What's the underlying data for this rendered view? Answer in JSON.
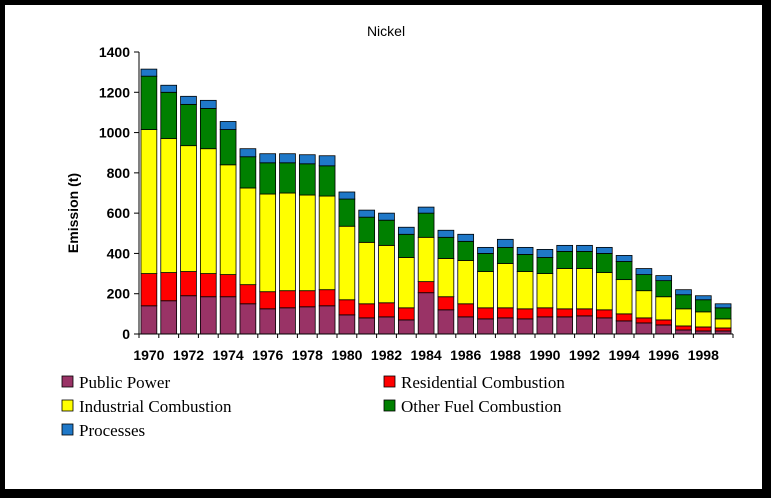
{
  "chart_data": {
    "type": "bar",
    "stacked": true,
    "title": "Nickel",
    "ylabel": "Emission (t)",
    "xlabel": "",
    "ylim": [
      0,
      1400
    ],
    "yticks": [
      0,
      200,
      400,
      600,
      800,
      1000,
      1200,
      1400
    ],
    "grid": false,
    "legend_position": "bottom",
    "categories": [
      "1970",
      "1971",
      "1972",
      "1973",
      "1974",
      "1975",
      "1976",
      "1977",
      "1978",
      "1979",
      "1980",
      "1981",
      "1982",
      "1983",
      "1984",
      "1985",
      "1986",
      "1987",
      "1988",
      "1989",
      "1990",
      "1991",
      "1992",
      "1993",
      "1994",
      "1995",
      "1996",
      "1997",
      "1998",
      "1999"
    ],
    "xtick_labels": [
      "1970",
      "1972",
      "1974",
      "1976",
      "1978",
      "1980",
      "1982",
      "1984",
      "1986",
      "1988",
      "1990",
      "1992",
      "1994",
      "1996",
      "1998"
    ],
    "series": [
      {
        "name": "Public Power",
        "color": "#993366",
        "values": [
          140,
          165,
          190,
          185,
          185,
          150,
          125,
          130,
          135,
          140,
          95,
          80,
          85,
          70,
          205,
          120,
          85,
          75,
          80,
          75,
          85,
          85,
          90,
          80,
          65,
          55,
          45,
          20,
          15,
          15
        ]
      },
      {
        "name": "Residential Combustion",
        "color": "#ff0000",
        "values": [
          160,
          140,
          120,
          115,
          110,
          95,
          85,
          85,
          80,
          80,
          75,
          70,
          70,
          60,
          55,
          65,
          65,
          55,
          50,
          50,
          45,
          40,
          35,
          40,
          35,
          25,
          25,
          20,
          20,
          15
        ]
      },
      {
        "name": "Industrial Combustion",
        "color": "#ffff00",
        "values": [
          715,
          665,
          625,
          620,
          545,
          480,
          485,
          485,
          475,
          465,
          365,
          305,
          285,
          250,
          220,
          190,
          215,
          180,
          220,
          185,
          170,
          200,
          200,
          185,
          170,
          135,
          115,
          85,
          75,
          45
        ]
      },
      {
        "name": "Other Fuel Combustion",
        "color": "#008000",
        "values": [
          265,
          230,
          205,
          200,
          175,
          155,
          155,
          150,
          155,
          150,
          135,
          125,
          125,
          115,
          120,
          105,
          95,
          90,
          80,
          85,
          80,
          85,
          85,
          95,
          90,
          80,
          80,
          70,
          60,
          55
        ]
      },
      {
        "name": "Processes",
        "color": "#1f78c8",
        "values": [
          35,
          35,
          40,
          40,
          40,
          40,
          45,
          45,
          45,
          50,
          35,
          35,
          35,
          35,
          30,
          35,
          35,
          30,
          40,
          35,
          40,
          30,
          30,
          30,
          30,
          30,
          25,
          25,
          20,
          20
        ]
      }
    ]
  }
}
